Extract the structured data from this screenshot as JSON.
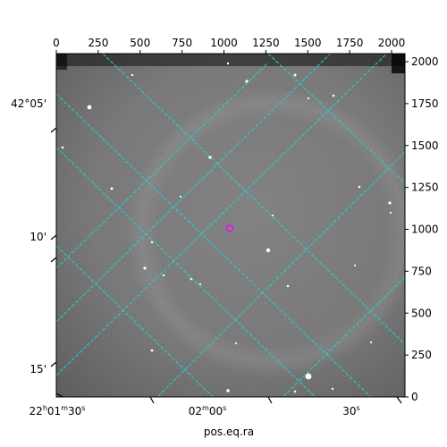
{
  "chart_data": {
    "type": "scatter",
    "title": "",
    "xlabel": "pos.eq.ra",
    "ylabel": "",
    "pixel_axes": {
      "x_range": [
        0,
        2080
      ],
      "y_range": [
        0,
        2048
      ],
      "x_ticks": [
        "0",
        "250",
        "500",
        "750",
        "1000",
        "1250",
        "1500",
        "1750",
        "2000"
      ],
      "x_tick_values": [
        0,
        250,
        500,
        750,
        1000,
        1250,
        1500,
        1750,
        2000
      ],
      "y_ticks": [
        "0",
        "250",
        "500",
        "750",
        "1000",
        "1250",
        "1500",
        "1750",
        "2000"
      ],
      "y_tick_values": [
        0,
        250,
        500,
        750,
        1000,
        1250,
        1500,
        1750,
        2000
      ]
    },
    "world_axes": {
      "ra_labels": [
        {
          "h": "22",
          "hu": "h",
          "m": "01",
          "mu": "m",
          "s": "30",
          "su": "s"
        },
        {
          "h": "",
          "hu": "",
          "m": "02",
          "mu": "m",
          "s": "00",
          "su": "s"
        },
        {
          "h": "",
          "hu": "",
          "m": "",
          "mu": "",
          "s": "30",
          "su": "s"
        }
      ],
      "dec_labels": [
        "42°05'",
        "10'",
        "15'"
      ]
    },
    "grid": true,
    "grid_color": "#22d3d3",
    "marker": {
      "x": 1035,
      "y": 1005,
      "color": "#ff00ff"
    },
    "background": "grayscale astronomical image"
  },
  "colors": {
    "grid": "#22d3d3",
    "marker": "#ff00ff",
    "frame": "#000000"
  }
}
